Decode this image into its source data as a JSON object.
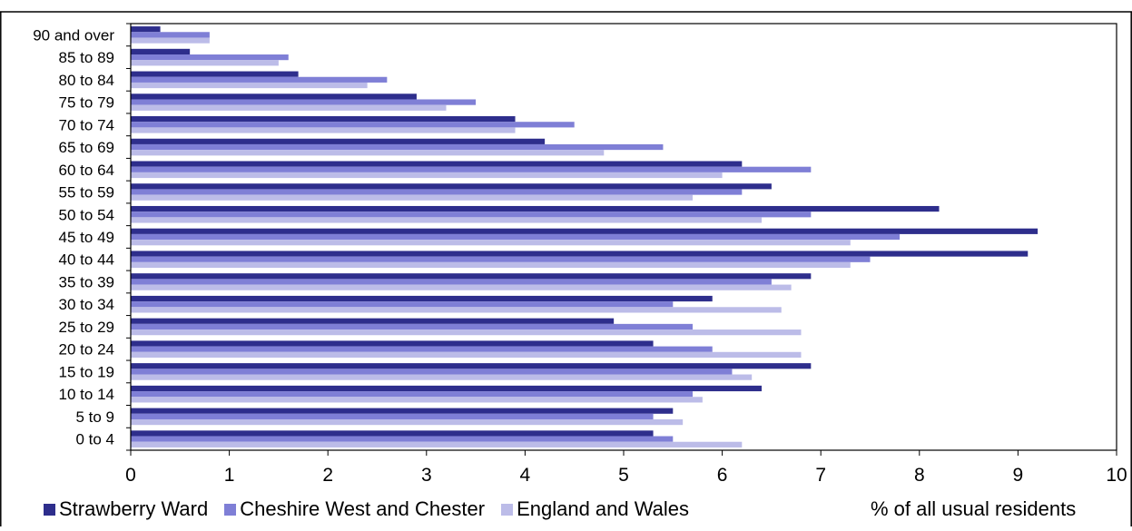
{
  "chart_data": {
    "type": "bar",
    "orientation": "horizontal",
    "categories": [
      "0 to 4",
      "5 to 9",
      "10 to 14",
      "15 to 19",
      "20 to 24",
      "25 to 29",
      "30 to 34",
      "35 to 39",
      "40 to 44",
      "45 to 49",
      "50 to 54",
      "55 to 59",
      "60 to 64",
      "65 to 69",
      "70 to 74",
      "75 to 79",
      "80 to 84",
      "85 to 89",
      "90 and over"
    ],
    "series": [
      {
        "name": "Strawberry Ward",
        "color": "#2e2e8c",
        "values": [
          5.3,
          5.5,
          6.4,
          6.9,
          5.3,
          4.9,
          5.9,
          6.9,
          9.1,
          9.2,
          8.2,
          6.5,
          6.2,
          4.2,
          3.9,
          2.9,
          1.7,
          0.6,
          0.3
        ]
      },
      {
        "name": "Cheshire West and Chester",
        "color": "#7f7fd6",
        "values": [
          5.5,
          5.3,
          5.7,
          6.1,
          5.9,
          5.7,
          5.5,
          6.5,
          7.5,
          7.8,
          6.9,
          6.2,
          6.9,
          5.4,
          4.5,
          3.5,
          2.6,
          1.6,
          0.8
        ]
      },
      {
        "name": "England and Wales",
        "color": "#bcbce8",
        "values": [
          6.2,
          5.6,
          5.8,
          6.3,
          6.8,
          6.8,
          6.6,
          6.7,
          7.3,
          7.3,
          6.4,
          5.7,
          6.0,
          4.8,
          3.9,
          3.2,
          2.4,
          1.5,
          0.8
        ]
      }
    ],
    "xlim": [
      0,
      10
    ],
    "xticks": [
      "0",
      "1",
      "2",
      "3",
      "4",
      "5",
      "6",
      "7",
      "8",
      "9",
      "10"
    ],
    "xlabel": "% of all usual residents",
    "ylabel": "",
    "grid": false,
    "legend_position": "bottom"
  }
}
